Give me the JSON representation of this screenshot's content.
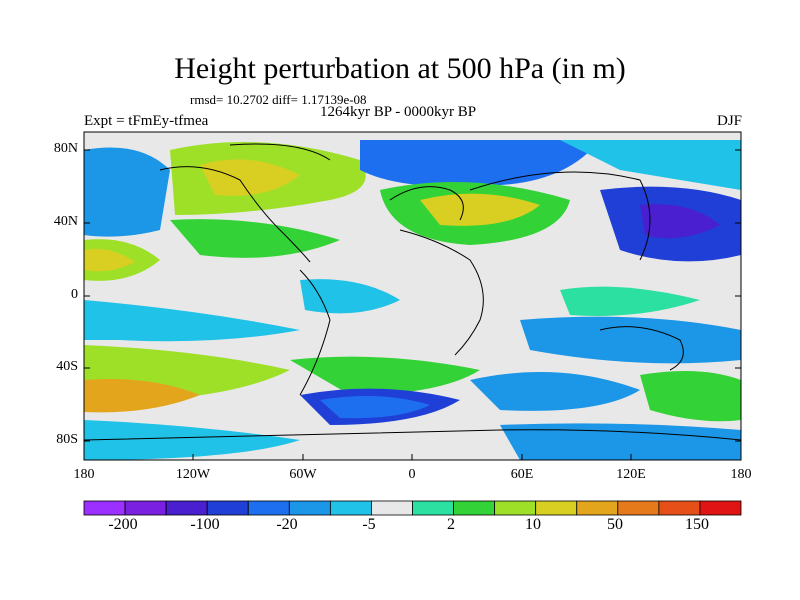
{
  "header": {
    "title": "Height perturbation at 500 hPa (in m)",
    "stats": "rmsd= 10.2702 diff= 1.17139e-08",
    "left_label": "Expt = tFmEy-tfmea",
    "center_label": "1264kyr BP - 0000kyr BP",
    "right_label": "DJF"
  },
  "axes": {
    "lat_ticks": [
      "80N",
      "40N",
      "0",
      "40S",
      "80S"
    ],
    "lon_ticks": [
      "180",
      "120W",
      "60W",
      "0",
      "60E",
      "120E",
      "180"
    ]
  },
  "colorbar": {
    "colors": [
      "#9b30ff",
      "#7a20e0",
      "#4a1fd0",
      "#1f3fd6",
      "#1e6ff0",
      "#1c96e6",
      "#21c2e8",
      "#e8e8e8",
      "#2be0a0",
      "#33d236",
      "#9ee028",
      "#d8cf22",
      "#e2a51c",
      "#e47a1a",
      "#e64f18",
      "#e01414"
    ],
    "labels": [
      "-200",
      "-100",
      "-20",
      "-5",
      "2",
      "10",
      "50",
      "150"
    ]
  }
}
